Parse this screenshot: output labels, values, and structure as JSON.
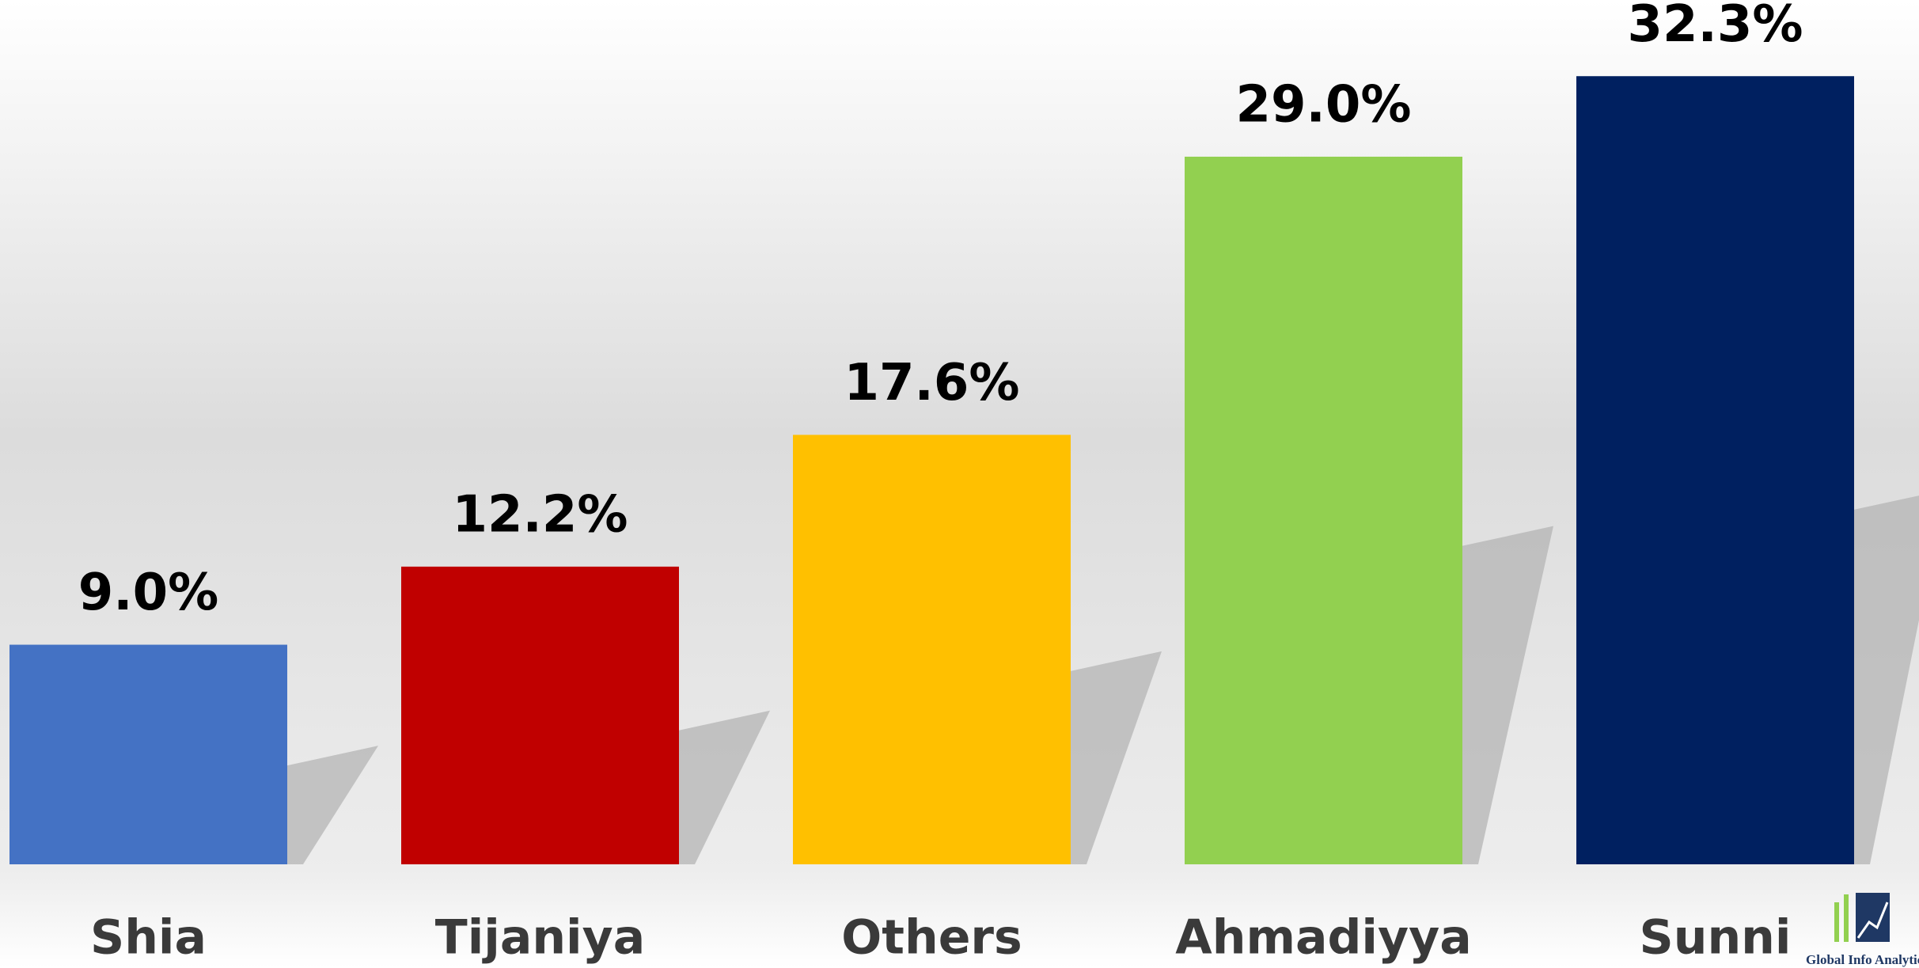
{
  "chart_data": {
    "type": "bar",
    "categories": [
      "Shia",
      "Tijaniya",
      "Others",
      "Ahmadiyya",
      "Sunni"
    ],
    "values": [
      9.0,
      12.2,
      17.6,
      29.0,
      32.3
    ],
    "value_labels": [
      "9.0%",
      "12.2%",
      "17.6%",
      "29.0%",
      "32.3%"
    ],
    "colors": [
      "#4472c4",
      "#c00000",
      "#ffc000",
      "#92d050",
      "#002060"
    ],
    "ylim": [
      0,
      35
    ],
    "logo_text": "Global Info Analytics"
  }
}
